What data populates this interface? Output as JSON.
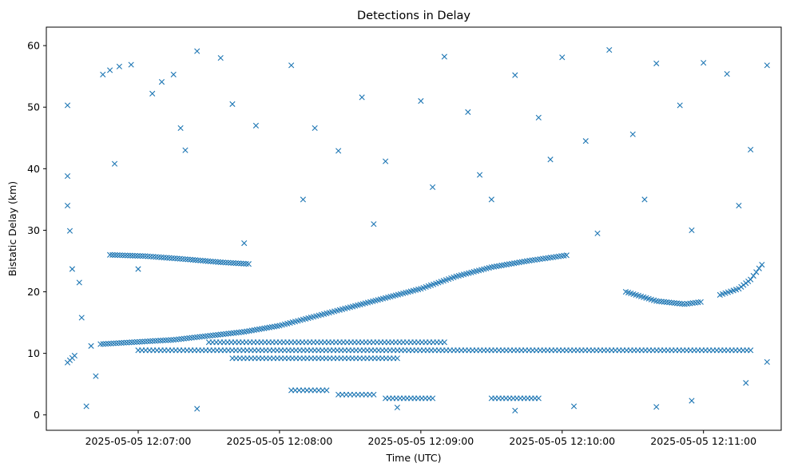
{
  "chart_data": {
    "type": "scatter",
    "title": "Detections in Delay",
    "xlabel": "Time (UTC)",
    "ylabel": "Bistatic Delay (km)",
    "x_unit": "time (UTC)",
    "xlim": [
      "2025-05-05 12:06:21",
      "2025-05-05 12:11:33"
    ],
    "ylim": [
      -2.5,
      63
    ],
    "x_tick_labels": [
      "2025-05-05 12:07:00",
      "2025-05-05 12:08:00",
      "2025-05-05 12:09:00",
      "2025-05-05 12:10:00",
      "2025-05-05 12:11:00"
    ],
    "y_tick_labels": [
      "0",
      "10",
      "20",
      "30",
      "40",
      "50",
      "60"
    ],
    "grid": false,
    "marker": "x",
    "color": "#1f77b4",
    "series": [
      {
        "trajectories": [
          {
            "description_points": [
              [
                "2025-05-05 12:06:44",
                11.5
              ],
              [
                "2025-05-05 12:07:15",
                12.2
              ],
              [
                "2025-05-05 12:07:45",
                13.5
              ],
              [
                "2025-05-05 12:08:00",
                14.5
              ],
              [
                "2025-05-05 12:08:20",
                16.5
              ],
              [
                "2025-05-05 12:08:30",
                17.5
              ],
              [
                "2025-05-05 12:08:45",
                19.0
              ],
              [
                "2025-05-05 12:09:00",
                20.5
              ],
              [
                "2025-05-05 12:09:15",
                22.5
              ],
              [
                "2025-05-05 12:09:30",
                24.0
              ],
              [
                "2025-05-05 12:09:45",
                25.0
              ],
              [
                "2025-05-05 12:10:03",
                26.0
              ]
            ]
          },
          {
            "description_points": [
              [
                "2025-05-05 12:06:48",
                26.0
              ],
              [
                "2025-05-05 12:07:03",
                25.8
              ],
              [
                "2025-05-05 12:07:20",
                25.3
              ],
              [
                "2025-05-05 12:07:35",
                24.8
              ],
              [
                "2025-05-05 12:07:48",
                24.5
              ]
            ]
          },
          {
            "description_points": [
              [
                "2025-05-05 12:10:27",
                20.0
              ],
              [
                "2025-05-05 12:10:40",
                18.5
              ],
              [
                "2025-05-05 12:10:52",
                18.0
              ],
              [
                "2025-05-05 12:11:00",
                18.4
              ]
            ]
          },
          {
            "description_points": [
              [
                "2025-05-05 12:11:07",
                19.5
              ],
              [
                "2025-05-05 12:11:15",
                20.5
              ],
              [
                "2025-05-05 12:11:20",
                22.0
              ],
              [
                "2025-05-05 12:11:26",
                25.0
              ]
            ]
          },
          {
            "description_points": [
              [
                "2025-05-05 12:06:30",
                8.5
              ],
              [
                "2025-05-05 12:06:34",
                10.0
              ]
            ]
          }
        ],
        "bands": [
          {
            "y": 10.5,
            "from": "2025-05-05 12:07:00",
            "to": "2025-05-05 12:11:20"
          },
          {
            "y": 11.8,
            "from": "2025-05-05 12:07:30",
            "to": "2025-05-05 12:09:10"
          },
          {
            "y": 9.2,
            "from": "2025-05-05 12:07:40",
            "to": "2025-05-05 12:08:50"
          },
          {
            "y": 4.0,
            "from": "2025-05-05 12:08:05",
            "to": "2025-05-05 12:08:20"
          },
          {
            "y": 3.3,
            "from": "2025-05-05 12:08:25",
            "to": "2025-05-05 12:08:40"
          },
          {
            "y": 2.7,
            "from": "2025-05-05 12:08:45",
            "to": "2025-05-05 12:09:05"
          },
          {
            "y": 2.7,
            "from": "2025-05-05 12:09:30",
            "to": "2025-05-05 12:09:50"
          }
        ],
        "scatter_points": [
          [
            "2025-05-05 12:06:30",
            50.3
          ],
          [
            "2025-05-05 12:06:30",
            38.8
          ],
          [
            "2025-05-05 12:06:30",
            34.0
          ],
          [
            "2025-05-05 12:06:31",
            29.9
          ],
          [
            "2025-05-05 12:06:32",
            23.7
          ],
          [
            "2025-05-05 12:06:35",
            21.5
          ],
          [
            "2025-05-05 12:06:36",
            15.8
          ],
          [
            "2025-05-05 12:06:38",
            1.4
          ],
          [
            "2025-05-05 12:06:40",
            11.2
          ],
          [
            "2025-05-05 12:06:42",
            6.3
          ],
          [
            "2025-05-05 12:06:45",
            55.3
          ],
          [
            "2025-05-05 12:06:48",
            56.0
          ],
          [
            "2025-05-05 12:06:52",
            56.6
          ],
          [
            "2025-05-05 12:06:57",
            56.9
          ],
          [
            "2025-05-05 12:07:06",
            52.2
          ],
          [
            "2025-05-05 12:07:10",
            54.1
          ],
          [
            "2025-05-05 12:07:15",
            55.3
          ],
          [
            "2025-05-05 12:07:18",
            46.6
          ],
          [
            "2025-05-05 12:07:25",
            59.1
          ],
          [
            "2025-05-05 12:07:35",
            58.0
          ],
          [
            "2025-05-05 12:07:40",
            50.5
          ],
          [
            "2025-05-05 12:07:50",
            47.0
          ],
          [
            "2025-05-05 12:08:05",
            56.8
          ],
          [
            "2025-05-05 12:08:15",
            46.6
          ],
          [
            "2025-05-05 12:08:25",
            42.9
          ],
          [
            "2025-05-05 12:08:35",
            51.6
          ],
          [
            "2025-05-05 12:08:45",
            41.2
          ],
          [
            "2025-05-05 12:09:00",
            51.0
          ],
          [
            "2025-05-05 12:09:10",
            58.2
          ],
          [
            "2025-05-05 12:09:20",
            49.2
          ],
          [
            "2025-05-05 12:09:30",
            35.0
          ],
          [
            "2025-05-05 12:09:40",
            55.2
          ],
          [
            "2025-05-05 12:09:50",
            48.3
          ],
          [
            "2025-05-05 12:10:00",
            58.1
          ],
          [
            "2025-05-05 12:10:10",
            44.5
          ],
          [
            "2025-05-05 12:10:20",
            59.3
          ],
          [
            "2025-05-05 12:10:30",
            45.6
          ],
          [
            "2025-05-05 12:10:40",
            57.1
          ],
          [
            "2025-05-05 12:10:50",
            50.3
          ],
          [
            "2025-05-05 12:11:00",
            57.2
          ],
          [
            "2025-05-05 12:11:10",
            55.4
          ],
          [
            "2025-05-05 12:11:20",
            43.1
          ],
          [
            "2025-05-05 12:11:27",
            56.8
          ],
          [
            "2025-05-05 12:06:50",
            40.8
          ],
          [
            "2025-05-05 12:07:00",
            23.7
          ],
          [
            "2025-05-05 12:07:20",
            43.0
          ],
          [
            "2025-05-05 12:07:45",
            27.9
          ],
          [
            "2025-05-05 12:08:10",
            35.0
          ],
          [
            "2025-05-05 12:08:40",
            31.0
          ],
          [
            "2025-05-05 12:09:05",
            37.0
          ],
          [
            "2025-05-05 12:09:25",
            39.0
          ],
          [
            "2025-05-05 12:09:55",
            41.5
          ],
          [
            "2025-05-05 12:10:15",
            29.5
          ],
          [
            "2025-05-05 12:10:35",
            35.0
          ],
          [
            "2025-05-05 12:10:55",
            30.0
          ],
          [
            "2025-05-05 12:11:15",
            34.0
          ],
          [
            "2025-05-05 12:07:25",
            1.0
          ],
          [
            "2025-05-05 12:08:50",
            1.2
          ],
          [
            "2025-05-05 12:09:40",
            0.7
          ],
          [
            "2025-05-05 12:10:05",
            1.4
          ],
          [
            "2025-05-05 12:10:40",
            1.3
          ],
          [
            "2025-05-05 12:10:55",
            2.3
          ],
          [
            "2025-05-05 12:11:18",
            5.2
          ],
          [
            "2025-05-05 12:11:27",
            8.6
          ]
        ]
      }
    ]
  }
}
